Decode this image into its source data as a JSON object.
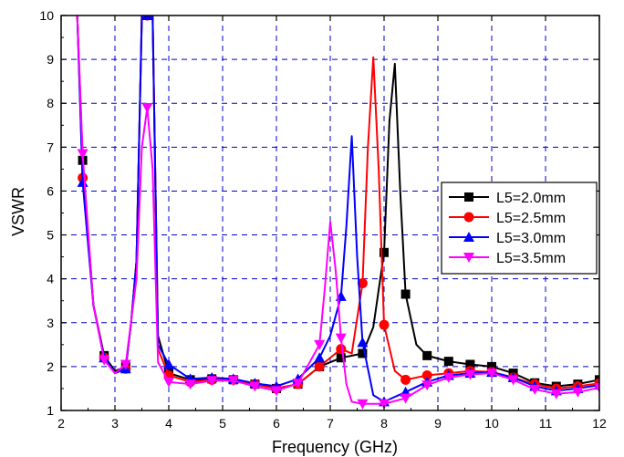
{
  "chart_data": {
    "type": "line",
    "title": "",
    "xlabel": "Frequency (GHz)",
    "ylabel": "VSWR",
    "xlim": [
      2,
      12
    ],
    "ylim": [
      1,
      10
    ],
    "xticks": [
      "2",
      "3",
      "4",
      "5",
      "6",
      "7",
      "8",
      "9",
      "10",
      "11",
      "12"
    ],
    "yticks": [
      "1",
      "2",
      "3",
      "4",
      "5",
      "6",
      "7",
      "8",
      "9",
      "10"
    ],
    "grid": "dashed",
    "legend_position": "right",
    "series": [
      {
        "name": "L5=2.0mm",
        "color": "#000000",
        "marker": "square",
        "x": [
          2.3,
          2.4,
          2.6,
          2.8,
          3.0,
          3.2,
          3.3,
          3.4,
          3.5,
          3.6,
          3.7,
          3.8,
          4.0,
          4.4,
          4.8,
          5.2,
          5.6,
          6.0,
          6.4,
          6.8,
          7.2,
          7.6,
          7.8,
          8.0,
          8.1,
          8.2,
          8.3,
          8.4,
          8.6,
          8.8,
          9.2,
          9.6,
          10.0,
          10.4,
          10.8,
          11.2,
          11.6,
          12.0
        ],
        "y": [
          10,
          6.7,
          3.4,
          2.25,
          1.9,
          2.0,
          3.0,
          4.4,
          10,
          10,
          10,
          2.7,
          1.85,
          1.7,
          1.72,
          1.7,
          1.6,
          1.5,
          1.6,
          2.0,
          2.2,
          2.3,
          2.9,
          4.6,
          7.6,
          8.9,
          6.0,
          3.65,
          2.5,
          2.25,
          2.12,
          2.05,
          2.0,
          1.85,
          1.63,
          1.55,
          1.6,
          1.7
        ],
        "markers_x": [
          2.4,
          2.8,
          3.2,
          3.6,
          4.0,
          4.4,
          4.8,
          5.2,
          5.6,
          6.0,
          6.4,
          6.8,
          7.2,
          7.6,
          8.0,
          8.4,
          8.8,
          9.2,
          9.6,
          10.0,
          10.4,
          10.8,
          11.2,
          11.6,
          12.0
        ]
      },
      {
        "name": "L5=2.5mm",
        "color": "#ff0000",
        "marker": "circle",
        "x": [
          2.3,
          2.4,
          2.6,
          2.8,
          3.0,
          3.2,
          3.3,
          3.4,
          3.5,
          3.6,
          3.7,
          3.8,
          4.0,
          4.4,
          4.8,
          5.2,
          5.6,
          6.0,
          6.4,
          6.8,
          7.2,
          7.4,
          7.6,
          7.7,
          7.8,
          7.9,
          8.0,
          8.2,
          8.4,
          8.8,
          9.2,
          9.6,
          10.0,
          10.4,
          10.8,
          11.2,
          11.6,
          12.0
        ],
        "y": [
          10,
          6.3,
          3.4,
          2.2,
          1.85,
          1.95,
          3.0,
          4.4,
          10,
          10,
          10,
          2.4,
          1.8,
          1.65,
          1.7,
          1.7,
          1.6,
          1.5,
          1.6,
          2.0,
          2.4,
          2.3,
          3.9,
          7.0,
          9.05,
          6.5,
          2.95,
          1.9,
          1.7,
          1.8,
          1.85,
          1.9,
          1.88,
          1.75,
          1.6,
          1.5,
          1.55,
          1.62
        ],
        "markers_x": [
          2.4,
          2.8,
          3.2,
          3.6,
          4.0,
          4.4,
          4.8,
          5.2,
          5.6,
          6.0,
          6.4,
          6.8,
          7.2,
          7.6,
          8.0,
          8.4,
          8.8,
          9.2,
          9.6,
          10.0,
          10.4,
          10.8,
          11.2,
          11.6,
          12.0
        ]
      },
      {
        "name": "L5=3.0mm",
        "color": "#0000ff",
        "marker": "triangle-up",
        "x": [
          2.3,
          2.4,
          2.6,
          2.8,
          3.0,
          3.2,
          3.3,
          3.4,
          3.5,
          3.6,
          3.7,
          3.8,
          4.0,
          4.4,
          4.8,
          5.2,
          5.6,
          6.0,
          6.4,
          6.8,
          7.0,
          7.2,
          7.3,
          7.4,
          7.5,
          7.6,
          7.8,
          8.0,
          8.4,
          8.8,
          9.2,
          9.6,
          10.0,
          10.4,
          10.8,
          11.2,
          11.6,
          12.0
        ],
        "y": [
          10,
          6.2,
          3.4,
          2.2,
          1.85,
          1.95,
          3.0,
          4.4,
          10,
          10,
          10,
          2.5,
          2.05,
          1.72,
          1.75,
          1.72,
          1.62,
          1.55,
          1.72,
          2.2,
          2.7,
          3.6,
          5.2,
          7.25,
          4.5,
          2.55,
          1.35,
          1.2,
          1.42,
          1.65,
          1.8,
          1.85,
          1.87,
          1.75,
          1.55,
          1.45,
          1.5,
          1.58
        ],
        "markers_x": [
          2.4,
          2.8,
          3.2,
          3.6,
          4.0,
          4.4,
          4.8,
          5.2,
          5.6,
          6.0,
          6.4,
          6.8,
          7.2,
          7.6,
          8.0,
          8.4,
          8.8,
          9.2,
          9.6,
          10.0,
          10.4,
          10.8,
          11.2,
          11.6,
          12.0
        ]
      },
      {
        "name": "L5=3.5mm",
        "color": "#ff00ff",
        "marker": "triangle-down",
        "x": [
          2.3,
          2.4,
          2.6,
          2.8,
          3.0,
          3.2,
          3.4,
          3.5,
          3.6,
          3.7,
          3.8,
          4.0,
          4.4,
          4.8,
          5.2,
          5.6,
          6.0,
          6.4,
          6.8,
          6.9,
          7.0,
          7.1,
          7.2,
          7.3,
          7.4,
          7.6,
          8.0,
          8.4,
          8.8,
          9.2,
          9.6,
          10.0,
          10.4,
          10.8,
          11.2,
          11.6,
          12.0
        ],
        "y": [
          10,
          6.85,
          3.4,
          2.15,
          1.85,
          2.05,
          4.0,
          7.0,
          7.9,
          6.5,
          2.1,
          1.65,
          1.6,
          1.68,
          1.68,
          1.55,
          1.45,
          1.62,
          2.5,
          3.8,
          5.3,
          4.2,
          2.65,
          1.6,
          1.2,
          1.15,
          1.15,
          1.28,
          1.58,
          1.75,
          1.82,
          1.85,
          1.7,
          1.48,
          1.38,
          1.42,
          1.52
        ],
        "markers_x": [
          2.4,
          2.8,
          3.2,
          3.6,
          4.0,
          4.4,
          4.8,
          5.2,
          5.6,
          6.0,
          6.4,
          6.8,
          7.2,
          7.6,
          8.0,
          8.4,
          8.8,
          9.2,
          9.6,
          10.0,
          10.4,
          10.8,
          11.2,
          11.6,
          12.0
        ]
      }
    ]
  }
}
